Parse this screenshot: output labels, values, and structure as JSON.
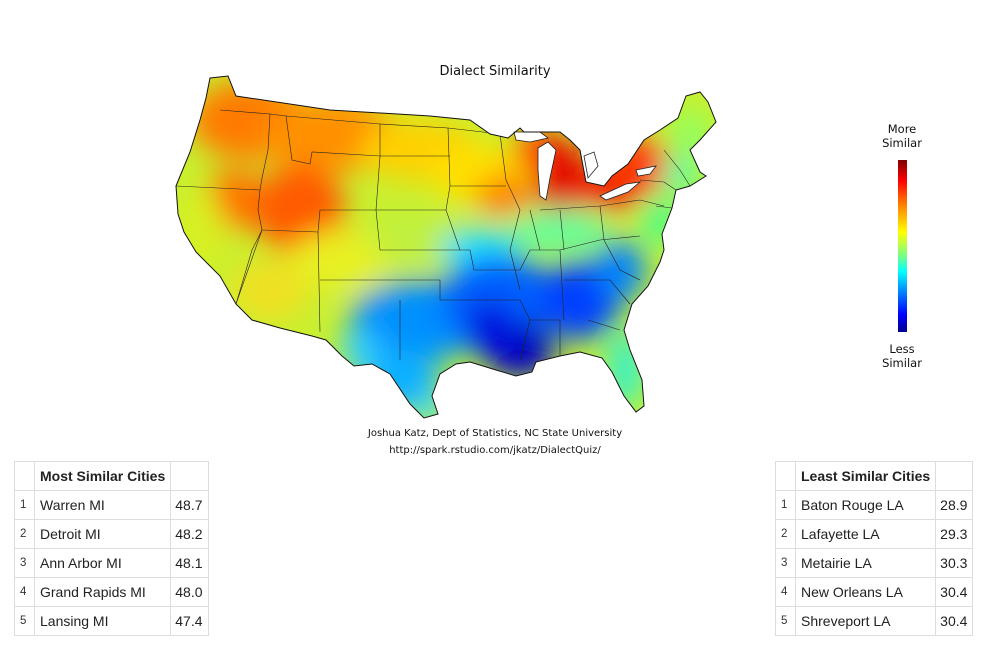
{
  "map": {
    "title": "Dialect Similarity",
    "credit_line1": "Joshua Katz, Dept of Statistics, NC State University",
    "credit_line2": "http://spark.rstudio.com/jkatz/DialectQuiz/",
    "legend": {
      "top_label_1": "More",
      "top_label_2": "Similar",
      "bottom_label_1": "Less",
      "bottom_label_2": "Similar",
      "colors": [
        "#7f0000",
        "#ff0000",
        "#ff7f00",
        "#ffff00",
        "#7fff7f",
        "#00ffff",
        "#007fff",
        "#0000ff",
        "#00008f"
      ]
    }
  },
  "most_similar": {
    "header": "Most Similar Cities",
    "rows": [
      {
        "rank": "1",
        "city": "Warren MI",
        "score": "48.7"
      },
      {
        "rank": "2",
        "city": "Detroit MI",
        "score": "48.2"
      },
      {
        "rank": "3",
        "city": "Ann Arbor MI",
        "score": "48.1"
      },
      {
        "rank": "4",
        "city": "Grand Rapids MI",
        "score": "48.0"
      },
      {
        "rank": "5",
        "city": "Lansing MI",
        "score": "47.4"
      }
    ]
  },
  "least_similar": {
    "header": "Least Similar Cities",
    "rows": [
      {
        "rank": "1",
        "city": "Baton Rouge LA",
        "score": "28.9"
      },
      {
        "rank": "2",
        "city": "Lafayette LA",
        "score": "29.3"
      },
      {
        "rank": "3",
        "city": "Metairie LA",
        "score": "30.3"
      },
      {
        "rank": "4",
        "city": "New Orleans LA",
        "score": "30.4"
      },
      {
        "rank": "5",
        "city": "Shreveport LA",
        "score": "30.4"
      }
    ]
  }
}
